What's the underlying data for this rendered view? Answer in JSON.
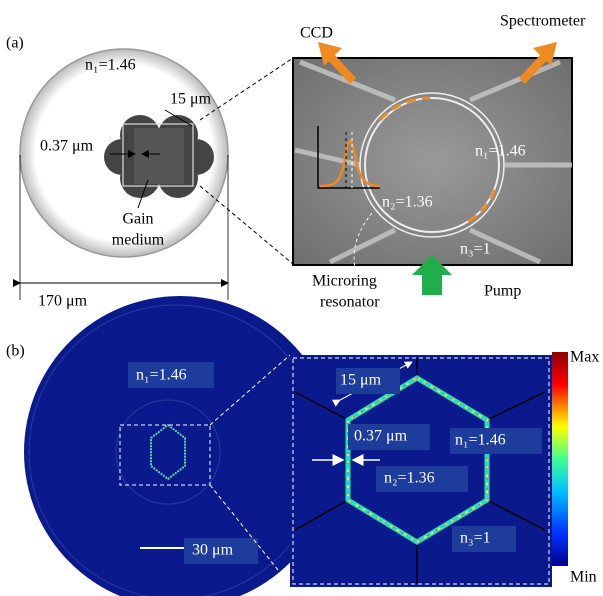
{
  "panel_a": {
    "label": "(a)",
    "fiber_index": "n₁=1.46",
    "side_length": "15 μm",
    "wall_width": "0.37 μm",
    "gain_medium": [
      "Gain",
      "medium"
    ],
    "diameter": "170 μm",
    "ccd": "CCD",
    "spectrometer": "Spectrometer",
    "zoom_n1": "n₁=1.46",
    "zoom_n2": "n₂=1.36",
    "zoom_n3": "n₃=1",
    "resonator": [
      "Microring",
      "resonator"
    ],
    "pump": "Pump"
  },
  "panel_b": {
    "label": "(b)",
    "fiber_index": "n₁=1.46",
    "scale_bar": "30 μm",
    "side_length": "15 μm",
    "wall_width": "0.37 μm",
    "zoom_n1": "n₁=1.46",
    "zoom_n2": "n₂=1.36",
    "zoom_n3": "n₃=1",
    "colorbar_max": "Max",
    "colorbar_min": "Min"
  }
}
